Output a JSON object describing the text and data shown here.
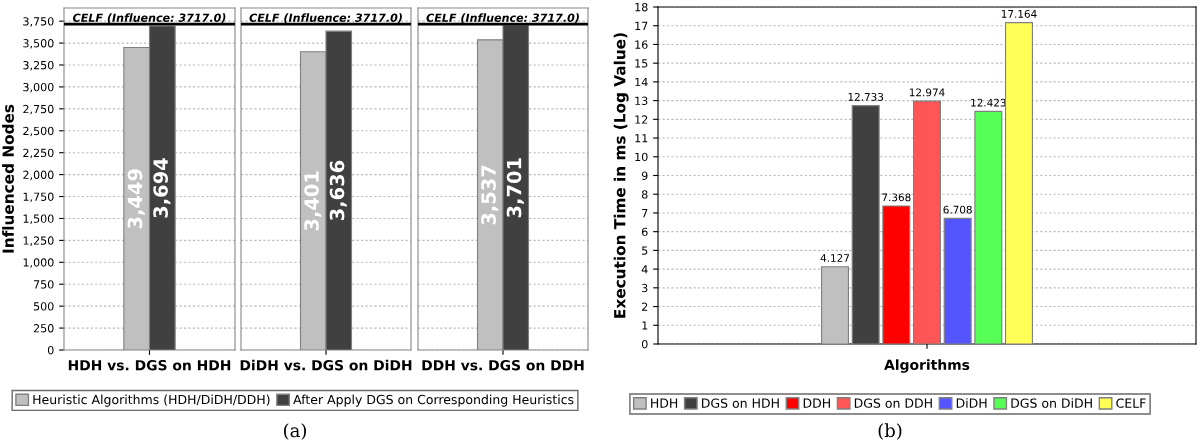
{
  "chart_data": [
    {
      "type": "bar",
      "categories": [
        "HDH vs. DGS on HDH"
      ],
      "ylabel": "Influenced Nodes",
      "series": [
        {
          "name": "Heuristic Algorithms (HDH/DiDH/DDH)",
          "color": "#c0c0c0",
          "values": [
            3449
          ],
          "value_labels": [
            "3,449"
          ]
        },
        {
          "name": "After Apply DGS on Corresponding Heuristics",
          "color": "#404040",
          "values": [
            3694
          ],
          "value_labels": [
            "3,694"
          ]
        }
      ],
      "ylim": [
        0,
        3900
      ],
      "yticks": [
        0,
        250,
        500,
        750,
        {
          "value": 1000,
          "label": "1,000"
        },
        {
          "value": 1250,
          "label": "1,250"
        },
        {
          "value": 1500,
          "label": "1,500"
        },
        {
          "value": 1750,
          "label": "1,750"
        },
        {
          "value": 2000,
          "label": "2,000"
        },
        {
          "value": 2250,
          "label": "2,250"
        },
        {
          "value": 2500,
          "label": "2,500"
        },
        {
          "value": 2750,
          "label": "2,750"
        },
        {
          "value": 3000,
          "label": "3,000"
        },
        {
          "value": 3250,
          "label": "3,250"
        },
        {
          "value": 3500,
          "label": "3,500"
        },
        {
          "value": 3750,
          "label": "3,750"
        }
      ],
      "ref_lines": [
        {
          "axis": "y",
          "value": 3717,
          "label": "CELF (Influence: 3717.0)",
          "color": "#000000"
        }
      ],
      "grid": "y",
      "legend": "bottom",
      "annotations": [
        "(a)"
      ]
    },
    {
      "type": "bar",
      "categories": [
        "DiDH vs. DGS on DiDH"
      ],
      "series": [
        {
          "color": "#c0c0c0",
          "values": [
            3401
          ],
          "value_labels": [
            "3,401"
          ]
        },
        {
          "color": "#404040",
          "values": [
            3636
          ],
          "value_labels": [
            "3,636"
          ]
        }
      ],
      "ylim": [
        0,
        3900
      ],
      "ref_lines": [
        {
          "axis": "y",
          "value": 3717,
          "label": "CELF (Influence: 3717.0)",
          "color": "#000000"
        }
      ],
      "grid": "y",
      "tick_labels": "x"
    },
    {
      "type": "bar",
      "categories": [
        "DDH vs. DGS on DDH"
      ],
      "series": [
        {
          "color": "#c0c0c0",
          "values": [
            3537
          ],
          "value_labels": [
            "3,537"
          ]
        },
        {
          "color": "#404040",
          "values": [
            3701
          ],
          "value_labels": [
            "3,701"
          ]
        }
      ],
      "ylim": [
        0,
        3900
      ],
      "ref_lines": [
        {
          "axis": "y",
          "value": 3717,
          "label": "CELF (Influence: 3717.0)",
          "color": "#000000"
        }
      ],
      "grid": "y",
      "tick_labels": "x"
    },
    {
      "type": "bar",
      "categories": [
        null
      ],
      "xlabel": "Algorithms",
      "ylabel": "Execution Time in ms (Log Value)",
      "series": [
        {
          "name": "HDH",
          "color": "#c0c0c0",
          "values": [
            4.127
          ]
        },
        {
          "name": "DGS on HDH",
          "color": "#404040",
          "values": [
            12.733
          ]
        },
        {
          "name": "DDH",
          "color": "#ff0000",
          "values": [
            7.368
          ]
        },
        {
          "name": "DGS on DDH",
          "color": "#ff5555",
          "values": [
            12.974
          ]
        },
        {
          "name": "DiDH",
          "color": "#5555ff",
          "values": [
            6.708
          ]
        },
        {
          "name": "DGS on DiDH",
          "color": "#55ff55",
          "values": [
            12.423
          ]
        },
        {
          "name": "CELF",
          "color": "#ffff55",
          "values": [
            17.164
          ]
        }
      ],
      "ylim": [
        0,
        18
      ],
      "yticks": [
        0,
        1,
        2,
        3,
        4,
        5,
        6,
        7,
        8,
        9,
        10,
        11,
        12,
        13,
        14,
        15,
        16,
        17,
        18
      ],
      "data_labels": true,
      "grid": "y",
      "legend": "bottom",
      "annotations": [
        "(b)"
      ]
    }
  ]
}
